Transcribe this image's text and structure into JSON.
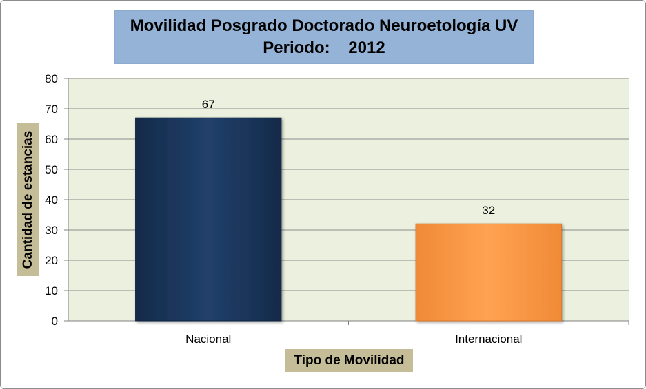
{
  "chart_data": {
    "type": "bar",
    "title": "Movilidad Posgrado Doctorado Neuroetología UV",
    "subtitle": "Periodo:    2012",
    "xlabel": "Tipo de Movilidad",
    "ylabel": "Cantidad de estancias",
    "categories": [
      "Nacional",
      "Internacional"
    ],
    "values": [
      67,
      32
    ],
    "data_labels": [
      "67",
      "32"
    ],
    "ylim": [
      0,
      80
    ],
    "yticks": [
      "0",
      "10",
      "20",
      "30",
      "40",
      "50",
      "60",
      "70",
      "80"
    ],
    "grid": true,
    "legend": "none",
    "colors": {
      "plot_background": "#ebf1de",
      "gridline": "#8a8a8a",
      "bar_nacional": "#1f3b63",
      "bar_internacional": "#fb9a4a",
      "title_background": "#95b3d7",
      "axis_label_background": "#c4bd97"
    }
  }
}
